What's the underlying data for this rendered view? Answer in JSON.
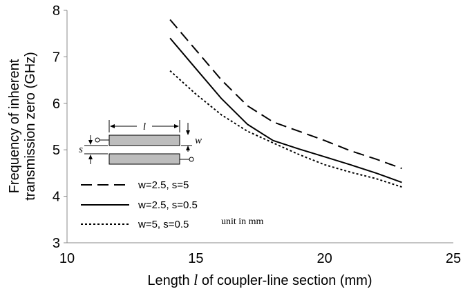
{
  "chart_data": {
    "type": "line",
    "title": "",
    "xlabel_pre": "Length ",
    "xlabel_symbol": "l",
    "xlabel_post": " of coupler-line section (mm)",
    "ylabel_line1": "Frequency of inherent",
    "ylabel_line2": "transmission zero (GHz)",
    "xlim": [
      10,
      25
    ],
    "ylim": [
      3,
      8
    ],
    "xticks": [
      10,
      15,
      20,
      25
    ],
    "yticks": [
      3,
      4,
      5,
      6,
      7,
      8
    ],
    "grid": false,
    "legend_position": "bottom-left",
    "note": "unit in mm",
    "inset": {
      "length_label": "l",
      "width_label": "w",
      "spacing_label": "s"
    },
    "series": [
      {
        "name": "w=2.5, s=5",
        "style": "dashed",
        "x": [
          14,
          15,
          16,
          17,
          18,
          19,
          20,
          21,
          22,
          23
        ],
        "y": [
          7.8,
          7.15,
          6.5,
          5.95,
          5.6,
          5.4,
          5.2,
          4.98,
          4.8,
          4.6
        ]
      },
      {
        "name": "w=2.5, s=0.5",
        "style": "solid",
        "x": [
          14,
          15,
          16,
          17,
          18,
          19,
          20,
          21,
          22,
          23
        ],
        "y": [
          7.4,
          6.75,
          6.1,
          5.55,
          5.2,
          5.02,
          4.85,
          4.68,
          4.5,
          4.3
        ]
      },
      {
        "name": "w=5, s=0.5",
        "style": "dotted",
        "x": [
          14,
          15,
          16,
          17,
          18,
          19,
          20,
          21,
          22,
          23
        ],
        "y": [
          6.7,
          6.2,
          5.75,
          5.4,
          5.15,
          4.9,
          4.68,
          4.52,
          4.38,
          4.2
        ]
      }
    ]
  }
}
